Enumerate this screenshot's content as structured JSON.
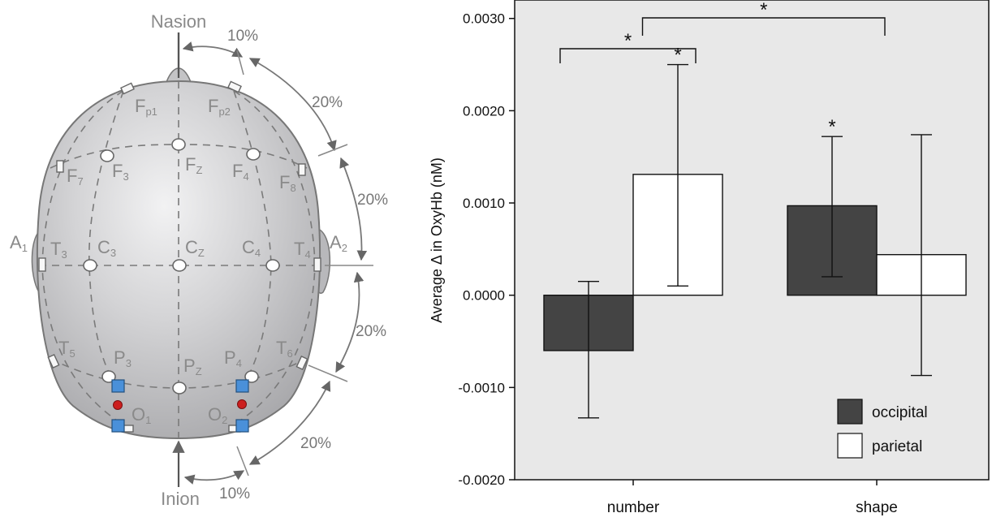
{
  "diagram": {
    "landmarks": {
      "nasion": "Nasion",
      "inion": "Inion"
    },
    "percent_labels": [
      "10%",
      "20%",
      "20%",
      "20%",
      "20%",
      "10%"
    ],
    "electrodes": [
      {
        "main": "F",
        "sub": "p1"
      },
      {
        "main": "F",
        "sub": "p2"
      },
      {
        "main": "F",
        "sub": "7"
      },
      {
        "main": "F",
        "sub": "3"
      },
      {
        "main": "F",
        "sub": "Z"
      },
      {
        "main": "F",
        "sub": "4"
      },
      {
        "main": "F",
        "sub": "8"
      },
      {
        "main": "A",
        "sub": "1"
      },
      {
        "main": "T",
        "sub": "3"
      },
      {
        "main": "C",
        "sub": "3"
      },
      {
        "main": "C",
        "sub": "Z"
      },
      {
        "main": "C",
        "sub": "4"
      },
      {
        "main": "T",
        "sub": "4"
      },
      {
        "main": "A",
        "sub": "2"
      },
      {
        "main": "T",
        "sub": "5"
      },
      {
        "main": "P",
        "sub": "3"
      },
      {
        "main": "P",
        "sub": "Z"
      },
      {
        "main": "P",
        "sub": "4"
      },
      {
        "main": "T",
        "sub": "6"
      },
      {
        "main": "O",
        "sub": "1"
      },
      {
        "main": "O",
        "sub": "2"
      }
    ],
    "colors": {
      "head": "#c9c9cb",
      "source_marker": "#4a90d9",
      "detector_marker": "#cc1f1f"
    }
  },
  "chart_data": {
    "type": "bar",
    "categories": [
      "number",
      "shape"
    ],
    "series": [
      {
        "name": "occipital",
        "values": [
          -0.0006,
          0.00097
        ],
        "err_low": [
          -0.00133,
          0.0002
        ],
        "err_high": [
          0.00015,
          0.00172
        ],
        "color": "#444444"
      },
      {
        "name": "parietal",
        "values": [
          0.00131,
          0.00044
        ],
        "err_low": [
          0.0001,
          -0.00087
        ],
        "err_high": [
          0.0025,
          0.00174
        ],
        "color": "#ffffff"
      }
    ],
    "ylabel": "Average Δ in OxyHb (nM)",
    "xlabel": "",
    "ylim": [
      -0.002,
      0.0032
    ],
    "yticks": [
      "0.0030",
      "0.0020",
      "0.0010",
      "0.0000",
      "-0.0010",
      "-0.0020"
    ],
    "ytick_values": [
      0.003,
      0.002,
      0.001,
      0.0,
      -0.001,
      -0.002
    ],
    "grid": false,
    "legend_position": "bottom-right",
    "significance_marker": "*",
    "plot_background": "#e8e8e8"
  }
}
